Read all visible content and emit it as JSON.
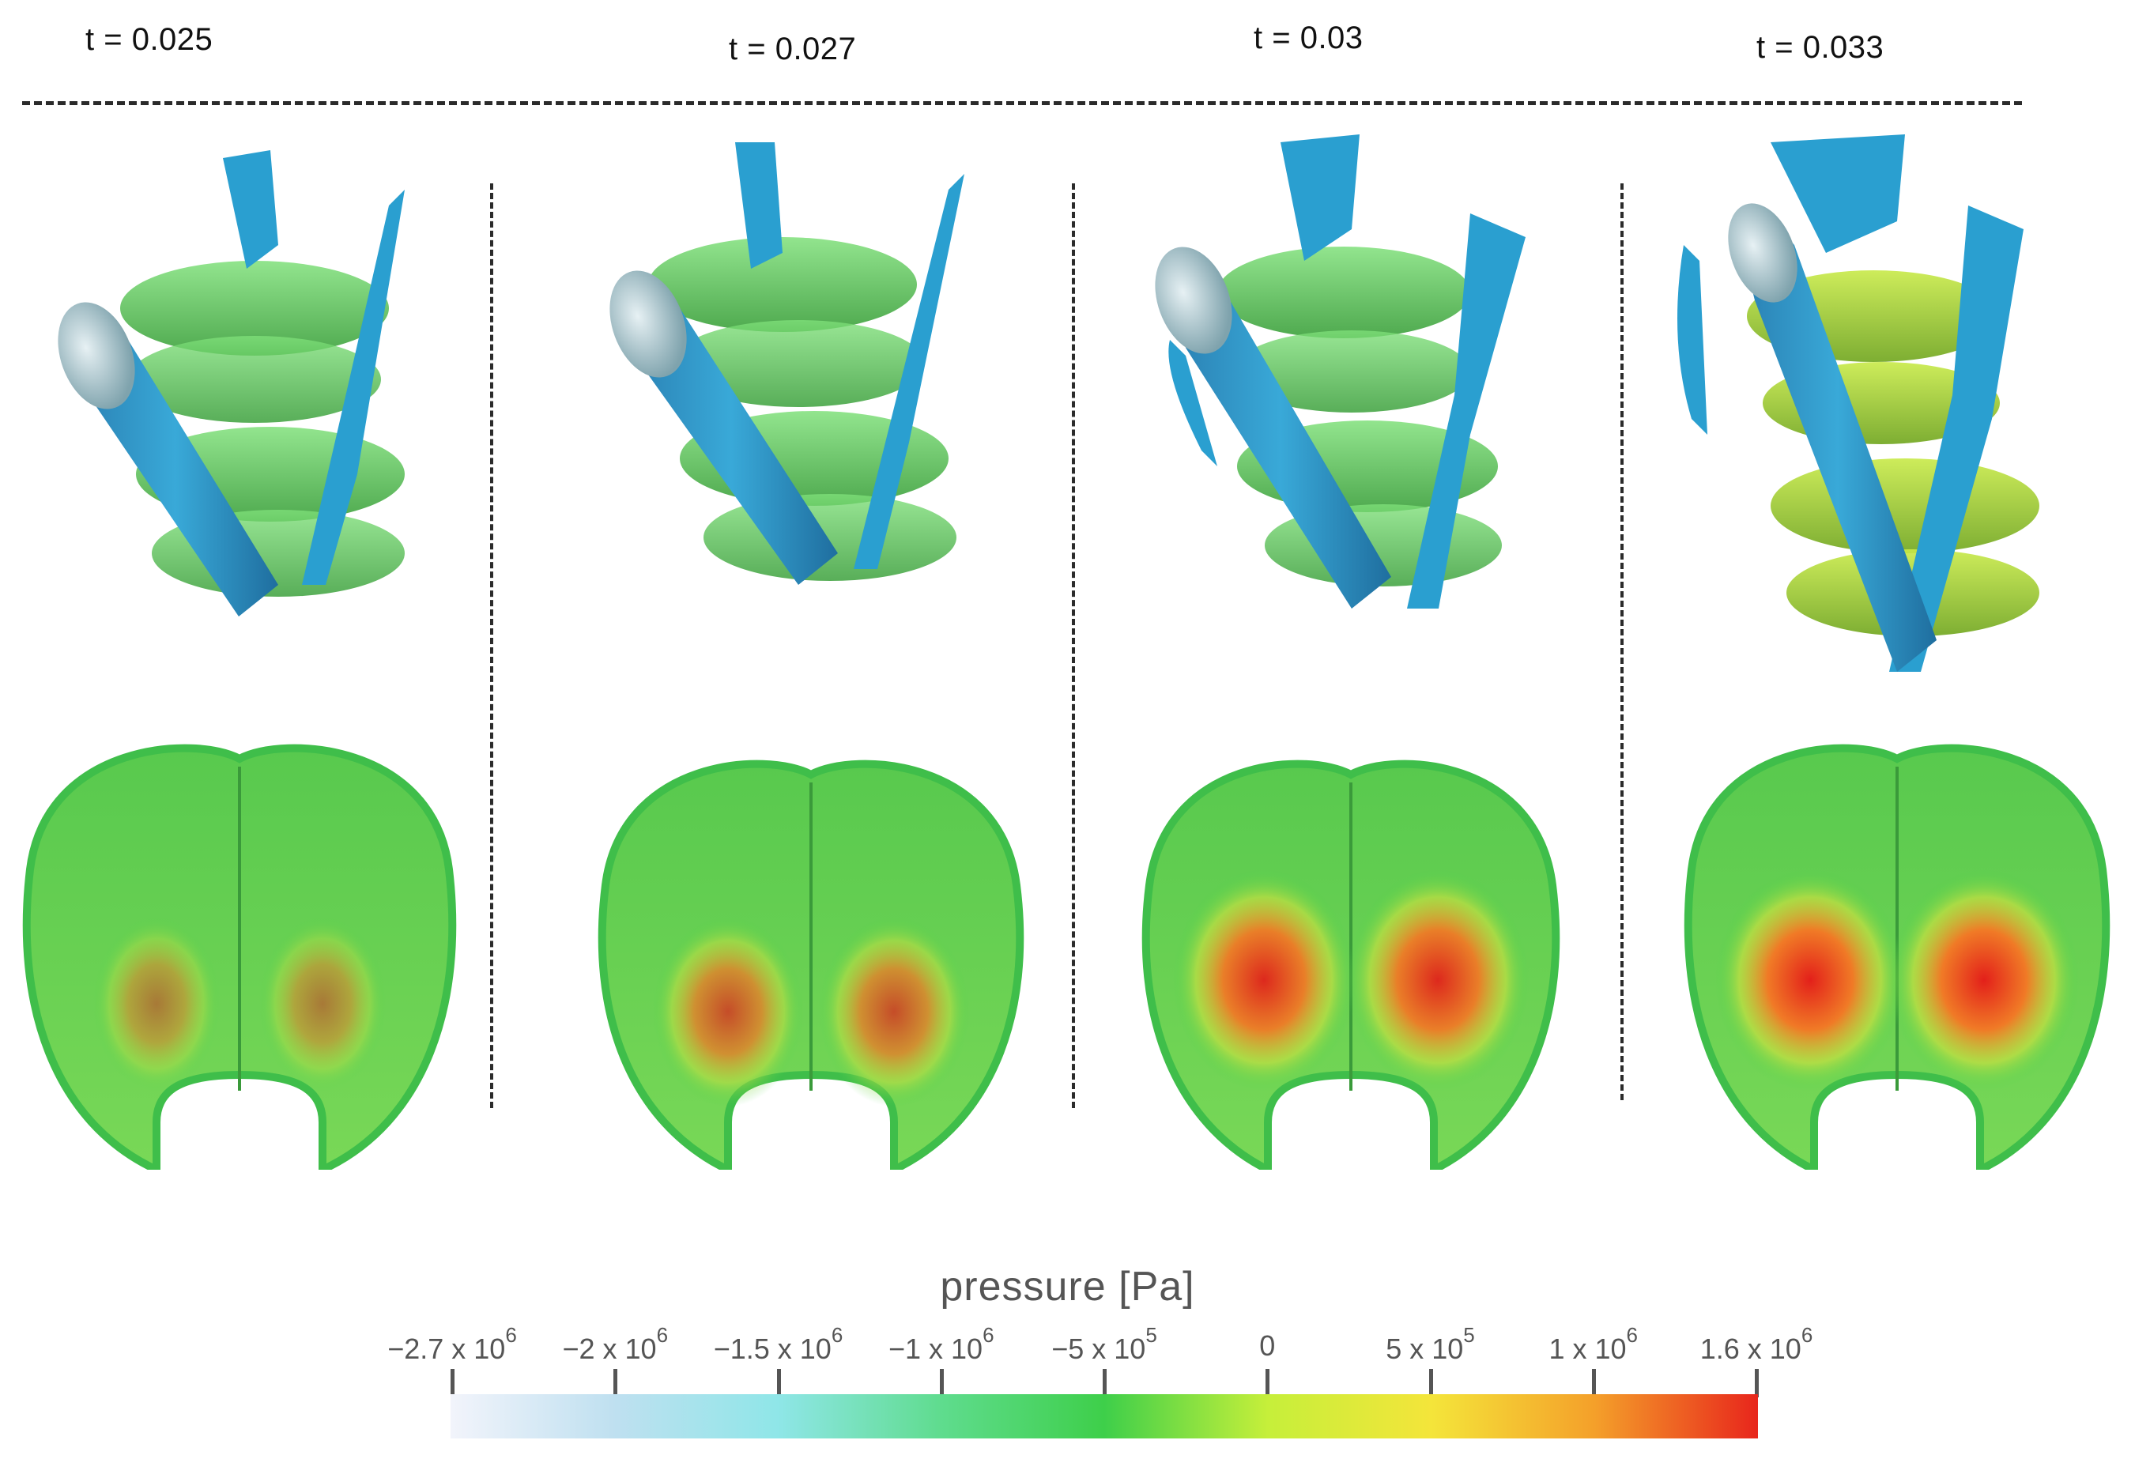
{
  "time_labels": [
    "t = 0.025",
    "t = 0.027",
    "t = 0.03",
    "t = 0.033"
  ],
  "legend": {
    "title": "pressure [Pa]",
    "ticks": [
      {
        "mantissa": "−2.7 x 10",
        "exp": "6"
      },
      {
        "mantissa": "−2 x 10",
        "exp": "6"
      },
      {
        "mantissa": "−1.5 x 10",
        "exp": "6"
      },
      {
        "mantissa": "−1 x 10",
        "exp": "6"
      },
      {
        "mantissa": "−5 x 10",
        "exp": "5"
      },
      {
        "mantissa": "0",
        "exp": ""
      },
      {
        "mantissa": "5 x 10",
        "exp": "5"
      },
      {
        "mantissa": "1 x 10",
        "exp": "6"
      },
      {
        "mantissa": "1.6 x 10",
        "exp": "6"
      }
    ],
    "colors": [
      "#f2f4fb",
      "#bfe0f0",
      "#8fe6e8",
      "#5fdc8e",
      "#3ecf4a",
      "#c6ef3a",
      "#f4e53a",
      "#f4a02a",
      "#e8261c"
    ]
  },
  "panels": [
    {
      "intensity": 0.35
    },
    {
      "intensity": 0.6
    },
    {
      "intensity": 0.9
    },
    {
      "intensity": 1.0
    }
  ]
}
